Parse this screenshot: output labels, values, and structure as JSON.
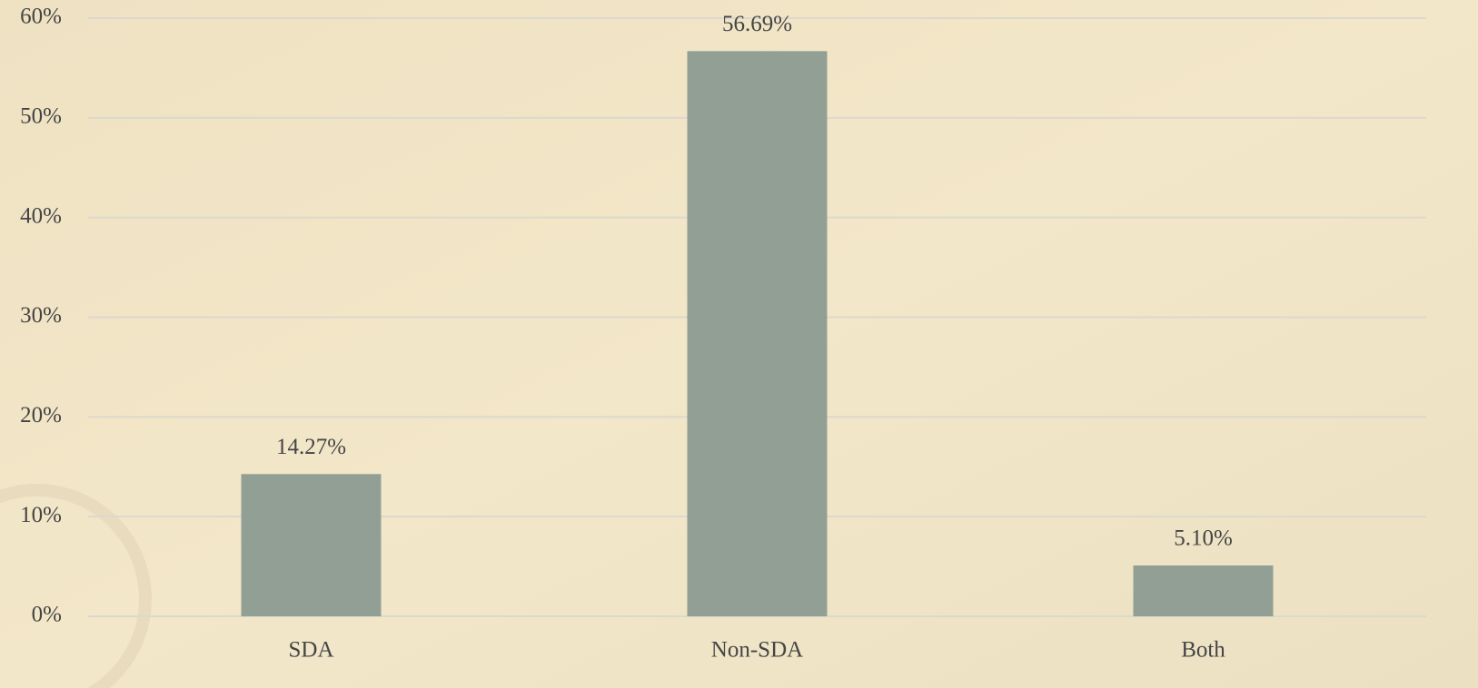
{
  "chart_data": {
    "type": "bar",
    "categories": [
      "SDA",
      "Non-SDA",
      "Both"
    ],
    "values": [
      14.27,
      56.69,
      5.1
    ],
    "value_labels": [
      "14.27%",
      "56.69%",
      "5.10%"
    ],
    "color": "#919f95",
    "ylim": [
      0,
      60
    ],
    "yticks": [
      {
        "value": 0,
        "label": "0%"
      },
      {
        "value": 10,
        "label": "10%"
      },
      {
        "value": 20,
        "label": "20%"
      },
      {
        "value": 30,
        "label": "30%"
      },
      {
        "value": 40,
        "label": "40%"
      },
      {
        "value": 50,
        "label": "50%"
      },
      {
        "value": 60,
        "label": "60%"
      }
    ],
    "grid": true
  }
}
